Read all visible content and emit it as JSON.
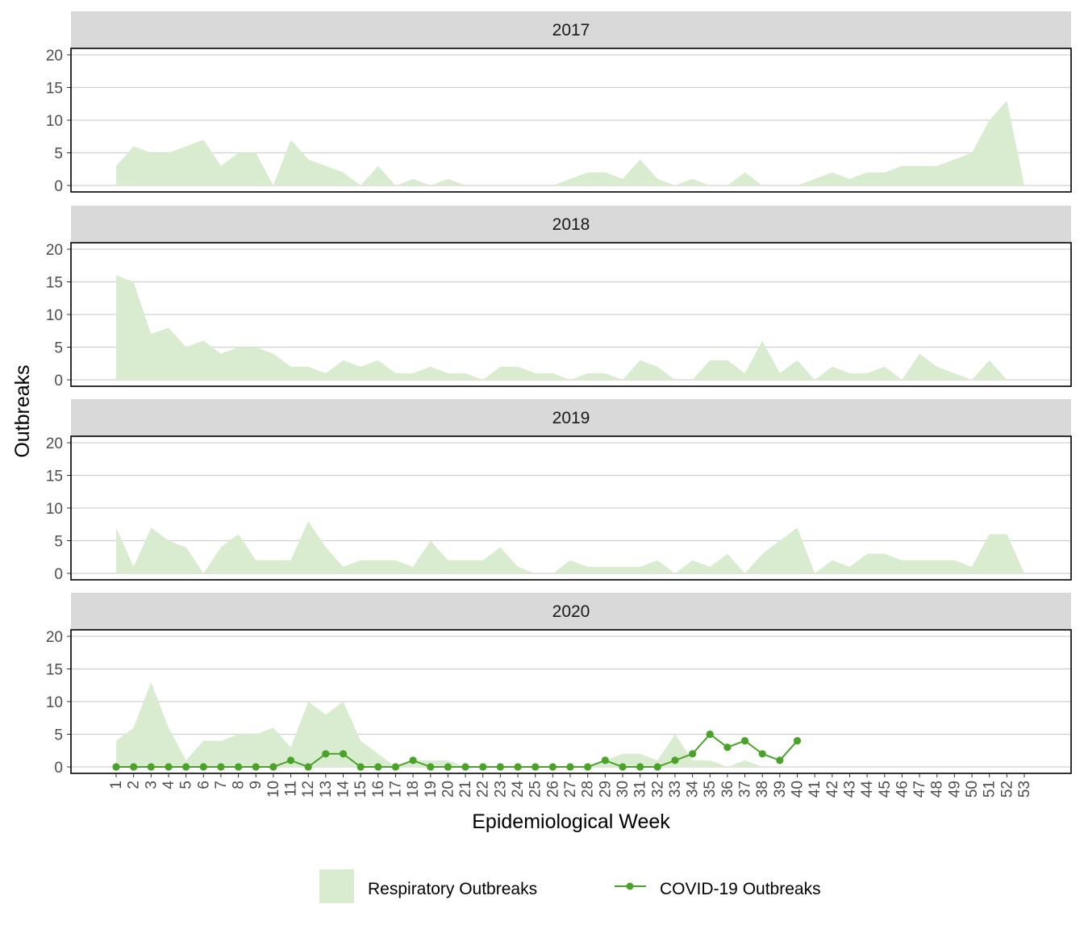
{
  "chart_data": {
    "type": "area",
    "xlabel": "Epidemiological Week",
    "ylabel": "Outbreaks",
    "ylim": [
      0,
      20
    ],
    "yticks": [
      "0",
      "5",
      "10",
      "15",
      "20"
    ],
    "x": [
      1,
      2,
      3,
      4,
      5,
      6,
      7,
      8,
      9,
      10,
      11,
      12,
      13,
      14,
      15,
      16,
      17,
      18,
      19,
      20,
      21,
      22,
      23,
      24,
      25,
      26,
      27,
      28,
      29,
      30,
      31,
      32,
      33,
      34,
      35,
      36,
      37,
      38,
      39,
      40,
      41,
      42,
      43,
      44,
      45,
      46,
      47,
      48,
      49,
      50,
      51,
      52,
      53
    ],
    "xticks": [
      "1",
      "2",
      "3",
      "4",
      "5",
      "6",
      "7",
      "8",
      "9",
      "10",
      "11",
      "12",
      "13",
      "14",
      "15",
      "16",
      "17",
      "18",
      "19",
      "20",
      "21",
      "22",
      "23",
      "24",
      "25",
      "26",
      "27",
      "28",
      "29",
      "30",
      "31",
      "32",
      "33",
      "34",
      "35",
      "36",
      "37",
      "38",
      "39",
      "40",
      "41",
      "42",
      "43",
      "44",
      "45",
      "46",
      "47",
      "48",
      "49",
      "50",
      "51",
      "52",
      "53"
    ],
    "grid": "horizontal",
    "legend_position": "bottom",
    "legend": [
      {
        "label": "Respiratory Outbreaks",
        "kind": "area"
      },
      {
        "label": "COVID-19 Outbreaks",
        "kind": "line"
      }
    ],
    "colors": {
      "respiratory": "#d9ecd0",
      "covid": "#4aa329",
      "strip": "#d9d9d9",
      "grid": "#d0d0d0"
    },
    "panels": [
      {
        "label": "2017",
        "respiratory": [
          3,
          6,
          5,
          5,
          6,
          7,
          3,
          5,
          5,
          0,
          7,
          4,
          3,
          2,
          0,
          3,
          0,
          1,
          0,
          1,
          0,
          0,
          0,
          0,
          0,
          0,
          1,
          2,
          2,
          1,
          4,
          1,
          0,
          1,
          0,
          0,
          2,
          0,
          0,
          0,
          1,
          2,
          1,
          2,
          2,
          3,
          3,
          3,
          4,
          5,
          10,
          13,
          0
        ]
      },
      {
        "label": "2018",
        "respiratory": [
          16,
          15,
          7,
          8,
          5,
          6,
          4,
          5,
          5,
          4,
          2,
          2,
          1,
          3,
          2,
          3,
          1,
          1,
          2,
          1,
          1,
          0,
          2,
          2,
          1,
          1,
          0,
          1,
          1,
          0,
          3,
          2,
          0,
          0,
          3,
          3,
          1,
          6,
          1,
          3,
          0,
          2,
          1,
          1,
          2,
          0,
          4,
          2,
          1,
          0,
          3,
          0
        ]
      },
      {
        "label": "2019",
        "respiratory": [
          7,
          1,
          7,
          5,
          4,
          0,
          4,
          6,
          2,
          2,
          2,
          8,
          4,
          1,
          2,
          2,
          2,
          1,
          5,
          2,
          2,
          2,
          4,
          1,
          0,
          0,
          2,
          1,
          1,
          1,
          1,
          2,
          0,
          2,
          1,
          3,
          0,
          3,
          5,
          7,
          0,
          2,
          1,
          3,
          3,
          2,
          2,
          2,
          2,
          1,
          6,
          6,
          0
        ]
      },
      {
        "label": "2020",
        "respiratory": [
          4,
          6,
          13,
          6,
          1,
          4,
          4,
          5,
          5,
          6,
          3,
          10,
          8,
          10,
          4,
          2,
          0,
          1,
          1,
          1,
          0,
          0,
          0,
          0,
          0,
          0,
          0,
          0,
          1,
          2,
          2,
          1,
          5,
          1,
          1,
          0,
          1,
          0,
          0,
          0
        ],
        "covid": [
          0,
          0,
          0,
          0,
          0,
          0,
          0,
          0,
          0,
          0,
          1,
          0,
          2,
          2,
          0,
          0,
          0,
          1,
          0,
          0,
          0,
          0,
          0,
          0,
          0,
          0,
          0,
          0,
          1,
          0,
          0,
          0,
          1,
          2,
          5,
          3,
          4,
          2,
          1,
          4
        ]
      }
    ]
  }
}
